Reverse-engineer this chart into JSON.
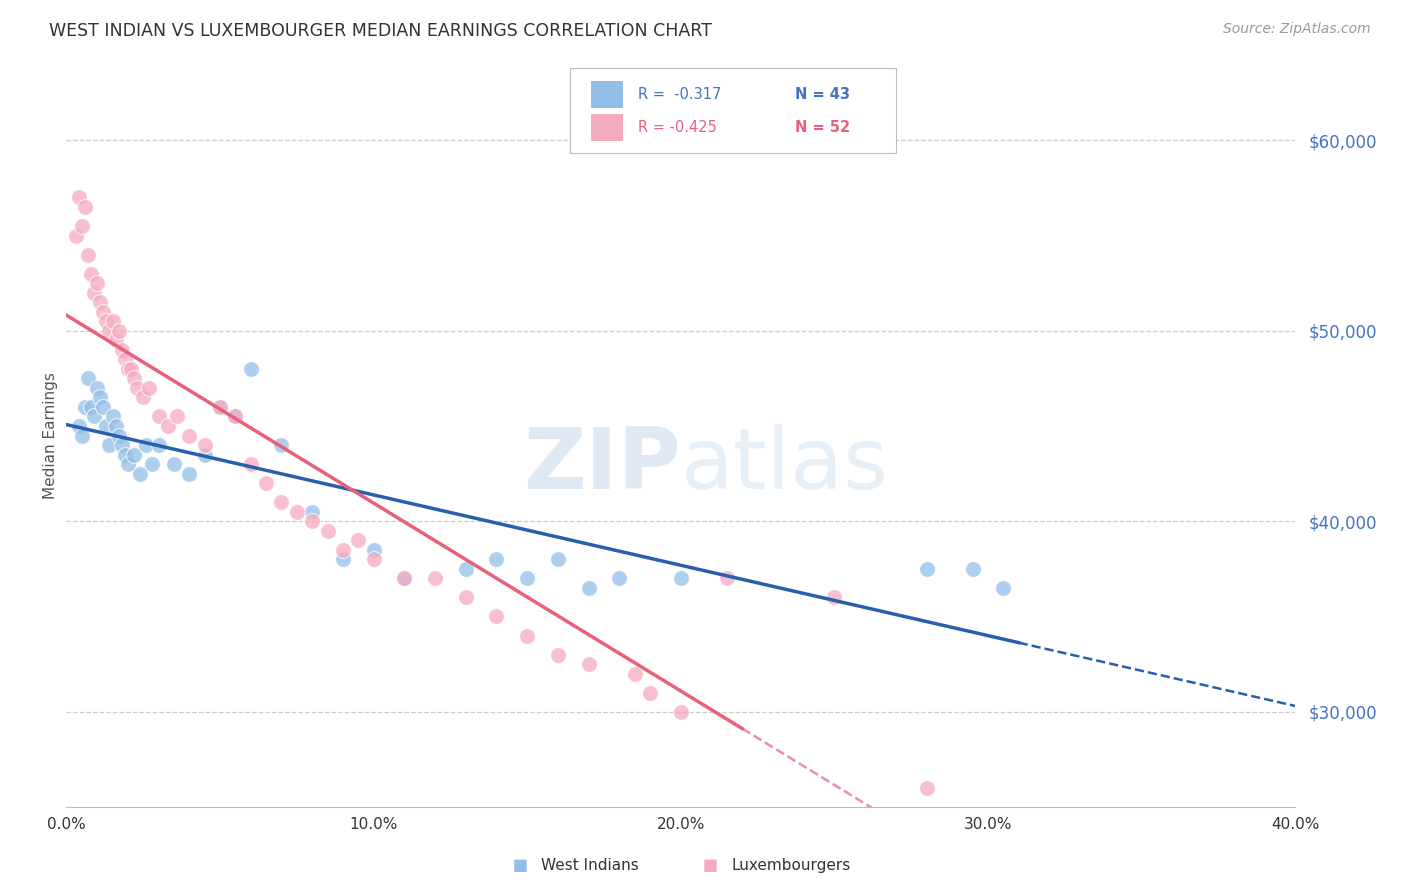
{
  "title": "WEST INDIAN VS LUXEMBOURGER MEDIAN EARNINGS CORRELATION CHART",
  "source": "Source: ZipAtlas.com",
  "ylabel": "Median Earnings",
  "y_ticks": [
    30000,
    40000,
    50000,
    60000
  ],
  "y_tick_labels": [
    "$30,000",
    "$40,000",
    "$50,000",
    "$60,000"
  ],
  "x_range": [
    0.0,
    40.0
  ],
  "y_range": [
    25000,
    64000
  ],
  "x_ticks": [
    0,
    10,
    20,
    30,
    40
  ],
  "x_tick_labels": [
    "0.0%",
    "10.0%",
    "20.0%",
    "30.0%",
    "40.0%"
  ],
  "legend_blue_r": "R =  -0.317",
  "legend_blue_n": "N = 43",
  "legend_pink_r": "R = -0.425",
  "legend_pink_n": "N = 52",
  "legend_label_blue": "West Indians",
  "legend_label_pink": "Luxembourgers",
  "blue_color": "#92BEE8",
  "pink_color": "#F5AABF",
  "blue_line_color": "#2860AE",
  "pink_line_color": "#E8607A",
  "watermark": "ZIPatlas",
  "wi_solid_end": 31.0,
  "lux_solid_end": 22.0,
  "west_indian_x": [
    0.4,
    0.5,
    0.6,
    0.7,
    0.8,
    0.9,
    1.0,
    1.1,
    1.2,
    1.3,
    1.4,
    1.5,
    1.6,
    1.7,
    1.8,
    1.9,
    2.0,
    2.2,
    2.4,
    2.6,
    2.8,
    3.0,
    3.5,
    4.0,
    4.5,
    5.0,
    5.5,
    6.0,
    7.0,
    8.0,
    9.0,
    10.0,
    11.0,
    13.0,
    14.0,
    15.0,
    16.0,
    17.0,
    18.0,
    20.0,
    28.0,
    29.5,
    30.5
  ],
  "west_indian_y": [
    45000,
    44500,
    46000,
    47500,
    46000,
    45500,
    47000,
    46500,
    46000,
    45000,
    44000,
    45500,
    45000,
    44500,
    44000,
    43500,
    43000,
    43500,
    42500,
    44000,
    43000,
    44000,
    43000,
    42500,
    43500,
    46000,
    45500,
    48000,
    44000,
    40500,
    38000,
    38500,
    37000,
    37500,
    38000,
    37000,
    38000,
    36500,
    37000,
    37000,
    37500,
    37500,
    36500
  ],
  "luxembourger_x": [
    0.3,
    0.4,
    0.5,
    0.6,
    0.7,
    0.8,
    0.9,
    1.0,
    1.1,
    1.2,
    1.3,
    1.4,
    1.5,
    1.6,
    1.7,
    1.8,
    1.9,
    2.0,
    2.1,
    2.2,
    2.3,
    2.5,
    2.7,
    3.0,
    3.3,
    3.6,
    4.0,
    4.5,
    5.0,
    5.5,
    6.0,
    6.5,
    7.0,
    7.5,
    8.0,
    8.5,
    9.0,
    9.5,
    10.0,
    11.0,
    12.0,
    13.0,
    14.0,
    15.0,
    16.0,
    17.0,
    18.5,
    19.0,
    20.0,
    21.5,
    25.0,
    28.0
  ],
  "luxembourger_y": [
    55000,
    57000,
    55500,
    56500,
    54000,
    53000,
    52000,
    52500,
    51500,
    51000,
    50500,
    50000,
    50500,
    49500,
    50000,
    49000,
    48500,
    48000,
    48000,
    47500,
    47000,
    46500,
    47000,
    45500,
    45000,
    45500,
    44500,
    44000,
    46000,
    45500,
    43000,
    42000,
    41000,
    40500,
    40000,
    39500,
    38500,
    39000,
    38000,
    37000,
    37000,
    36000,
    35000,
    34000,
    33000,
    32500,
    32000,
    31000,
    30000,
    37000,
    36000,
    26000
  ]
}
